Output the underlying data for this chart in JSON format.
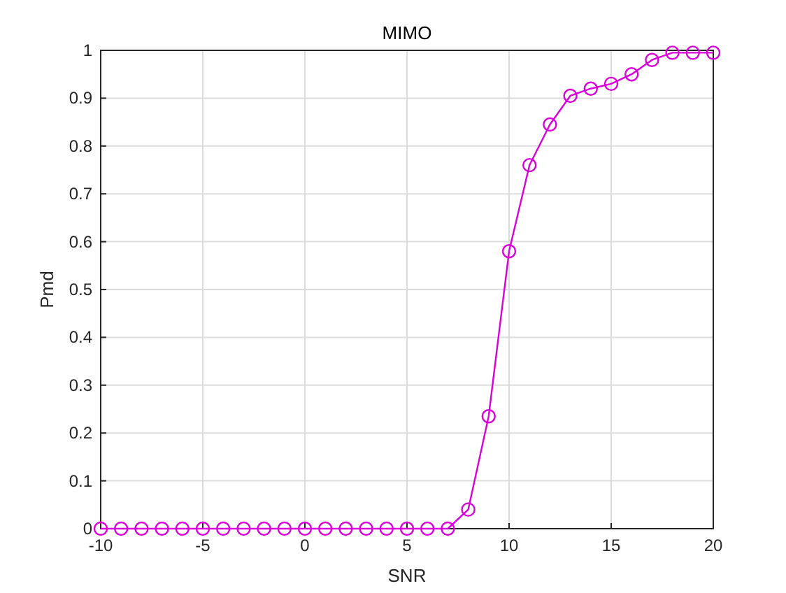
{
  "chart_data": {
    "type": "line",
    "title": "MIMO",
    "xlabel": "SNR",
    "ylabel": "Pmd",
    "x": [
      -10,
      -9,
      -8,
      -7,
      -6,
      -5,
      -4,
      -3,
      -2,
      -1,
      0,
      1,
      2,
      3,
      4,
      5,
      6,
      7,
      8,
      9,
      10,
      11,
      12,
      13,
      14,
      15,
      16,
      17,
      18,
      19,
      20
    ],
    "series": [
      {
        "color": "#d900d9",
        "values": [
          0,
          0,
          0,
          0,
          0,
          0,
          0,
          0,
          0,
          0,
          0,
          0,
          0,
          0,
          0,
          0,
          0,
          0,
          0.04,
          0.235,
          0.58,
          0.76,
          0.845,
          0.905,
          0.92,
          0.93,
          0.95,
          0.98,
          0.995,
          0.995,
          0.995
        ]
      }
    ],
    "xlim": [
      -10,
      20
    ],
    "xticks": [
      -10,
      -5,
      0,
      5,
      10,
      15,
      20
    ],
    "ylim": [
      0,
      1
    ],
    "yticks": [
      0,
      0.1,
      0.2,
      0.3,
      0.4,
      0.5,
      0.6,
      0.7,
      0.8,
      0.9,
      1
    ],
    "grid": true,
    "marker": "circle",
    "line_style": "solid"
  }
}
